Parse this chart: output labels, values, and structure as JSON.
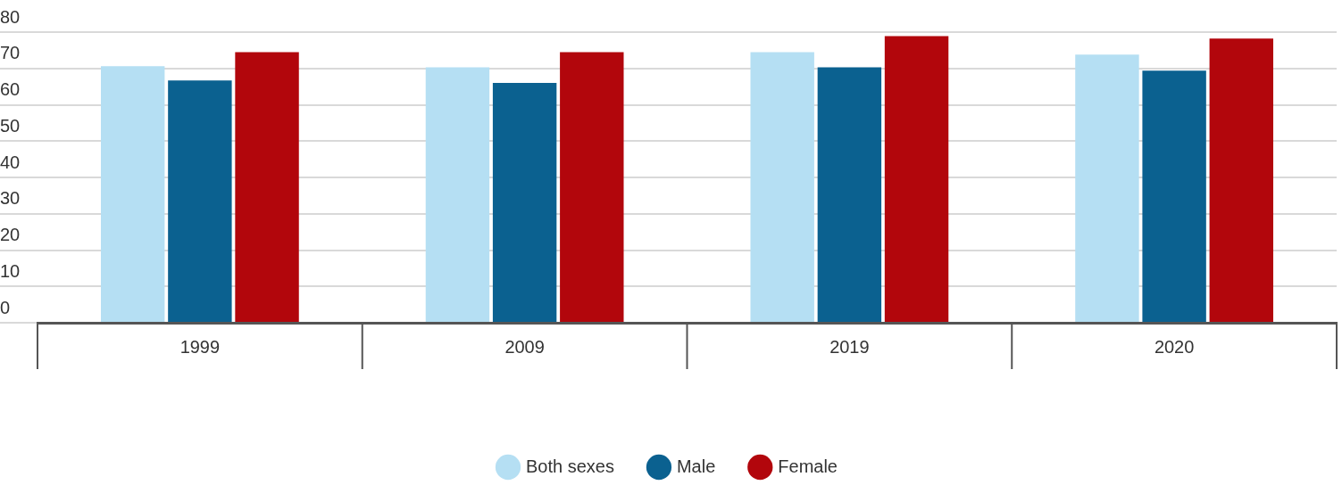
{
  "chart_data": {
    "type": "bar",
    "categories": [
      "1999",
      "2009",
      "2019",
      "2020"
    ],
    "series": [
      {
        "name": "Both sexes",
        "color": "#b5dff3",
        "values": [
          70.6,
          70.3,
          74.5,
          73.8
        ]
      },
      {
        "name": "Male",
        "color": "#0b6190",
        "values": [
          66.7,
          66.0,
          70.3,
          69.4
        ]
      },
      {
        "name": "Female",
        "color": "#b2060c",
        "values": [
          74.5,
          74.5,
          78.9,
          78.2
        ]
      }
    ],
    "ylim": [
      0,
      80
    ],
    "yticks": [
      0,
      10,
      20,
      30,
      40,
      50,
      60,
      70,
      80
    ],
    "grid": "y",
    "legend": "bottom"
  }
}
